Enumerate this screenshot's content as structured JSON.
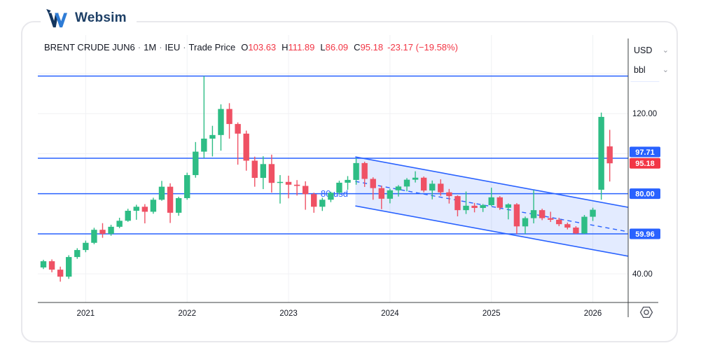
{
  "logo": {
    "text": "Websim"
  },
  "header": {
    "symbol": "BRENT CRUDE JUN6",
    "sep": "·",
    "interval": "1M",
    "exchange": "IEU",
    "price_type": "Trade Price",
    "o_label": "O",
    "o": "103.63",
    "h_label": "H",
    "h": "111.89",
    "l_label": "L",
    "l": "86.09",
    "c_label": "C",
    "c": "95.18",
    "change": "-23.17 (−19.58%)"
  },
  "axis_right": {
    "unit_currency": "USD",
    "unit_measure": "bbl",
    "chevron": "⌄"
  },
  "colors": {
    "up": "#2ebd85",
    "down": "#ef5164",
    "blue": "#2962ff",
    "red_badge": "#f23645",
    "axis_text": "#131722",
    "axis_line": "#3c4043",
    "grid": "#f0f1f4"
  },
  "chart_data": {
    "type": "candlestick",
    "title": "BRENT CRUDE JUN6",
    "interval": "1M",
    "exchange": "IEU",
    "price_source": "Trade Price",
    "current_ohlc": {
      "open": 103.63,
      "high": 111.89,
      "low": 86.09,
      "close": 95.18,
      "change": -23.17,
      "change_pct": -19.58
    },
    "ylim": [
      26,
      159
    ],
    "grid_prices": [
      40,
      60,
      80,
      100,
      120,
      140
    ],
    "y_axis_labels": [
      {
        "price": 120,
        "label": "120.00"
      },
      {
        "price": 40,
        "label": "40.00"
      }
    ],
    "price_lines": [
      {
        "price": 138.73,
        "label": "138.73"
      },
      {
        "price": 97.71,
        "label": "97.71"
      },
      {
        "price": 80.0,
        "label": "80.00"
      },
      {
        "price": 59.96,
        "label": "59.96"
      }
    ],
    "last_price": {
      "price": 95.18,
      "label": "95.18",
      "direction": "down"
    },
    "annotations": [
      {
        "text": "80 usd",
        "price": 80,
        "x_index": 32.8
      }
    ],
    "channel": {
      "x1_index": 36.9,
      "x2_index": 69.2,
      "top_price_start": 98.4,
      "top_price_end": 73.2,
      "bottom_price_start": 73.9,
      "bottom_price_end": 48.8,
      "midline_dashed": true
    },
    "time_axis": [
      {
        "label": "2021",
        "index": 5
      },
      {
        "label": "2022",
        "index": 17
      },
      {
        "label": "2023",
        "index": 29
      },
      {
        "label": "2024",
        "index": 41
      },
      {
        "label": "2025",
        "index": 53
      },
      {
        "label": "2026",
        "index": 65
      }
    ],
    "candles": [
      [
        "2020-08",
        43.2,
        47.0,
        42.4,
        46.3
      ],
      [
        "2020-09",
        46.3,
        47.2,
        40.8,
        42.1
      ],
      [
        "2020-10",
        42.1,
        43.6,
        36.1,
        38.6
      ],
      [
        "2020-11",
        38.6,
        49.3,
        37.5,
        48.4
      ],
      [
        "2020-12",
        48.4,
        52.8,
        47.5,
        51.9
      ],
      [
        "2021-01",
        51.9,
        56.6,
        50.8,
        55.5
      ],
      [
        "2021-02",
        55.5,
        63.0,
        54.8,
        62.0
      ],
      [
        "2021-03",
        62.0,
        65.3,
        58.0,
        60.0
      ],
      [
        "2021-04",
        60.0,
        64.5,
        59.0,
        63.5
      ],
      [
        "2021-05",
        63.5,
        68.0,
        62.8,
        66.5
      ],
      [
        "2021-06",
        66.5,
        72.5,
        66.0,
        71.5
      ],
      [
        "2021-07",
        71.5,
        74.5,
        67.0,
        73.5
      ],
      [
        "2021-08",
        73.5,
        74.8,
        65.2,
        71.0
      ],
      [
        "2021-09",
        71.0,
        78.0,
        70.0,
        77.0
      ],
      [
        "2021-10",
        77.0,
        86.4,
        76.5,
        83.5
      ],
      [
        "2021-11",
        83.5,
        85.2,
        65.4,
        70.5
      ],
      [
        "2021-12",
        70.5,
        78.5,
        69.0,
        77.8
      ],
      [
        "2022-01",
        77.8,
        90.5,
        77.0,
        89.3
      ],
      [
        "2022-02",
        89.3,
        105.8,
        88.0,
        101.0
      ],
      [
        "2022-03",
        101.0,
        138.7,
        97.8,
        107.5
      ],
      [
        "2022-04",
        107.5,
        113.9,
        98.6,
        109.3
      ],
      [
        "2022-05",
        109.3,
        124.6,
        101.5,
        122.3
      ],
      [
        "2022-06",
        122.3,
        125.2,
        107.5,
        114.8
      ],
      [
        "2022-07",
        114.8,
        115.6,
        94.5,
        110.0
      ],
      [
        "2022-08",
        110.0,
        111.5,
        91.5,
        96.5
      ],
      [
        "2022-09",
        96.5,
        98.5,
        83.5,
        87.9
      ],
      [
        "2022-10",
        87.9,
        98.7,
        82.3,
        94.8
      ],
      [
        "2022-11",
        94.8,
        99.5,
        80.6,
        85.4
      ],
      [
        "2022-12",
        85.4,
        89.3,
        75.1,
        85.9
      ],
      [
        "2023-01",
        85.9,
        89.0,
        77.7,
        84.5
      ],
      [
        "2023-02",
        84.5,
        86.8,
        79.1,
        83.9
      ],
      [
        "2023-03",
        83.9,
        86.2,
        72.0,
        79.8
      ],
      [
        "2023-04",
        79.8,
        80.5,
        70.5,
        73.5
      ],
      [
        "2023-05",
        73.5,
        78.0,
        71.4,
        77.0
      ],
      [
        "2023-06",
        77.0,
        81.0,
        75.8,
        80.5
      ],
      [
        "2023-07",
        80.5,
        86.5,
        79.5,
        85.5
      ],
      [
        "2023-08",
        85.5,
        88.8,
        82.0,
        86.9
      ],
      [
        "2023-09",
        86.9,
        97.71,
        84.5,
        95.3
      ],
      [
        "2023-10",
        95.3,
        96.0,
        83.4,
        87.4
      ],
      [
        "2023-11",
        87.4,
        88.2,
        77.0,
        82.8
      ],
      [
        "2023-12",
        82.8,
        84.0,
        72.3,
        77.5
      ],
      [
        "2024-01",
        77.5,
        82.5,
        75.2,
        81.7
      ],
      [
        "2024-02",
        81.7,
        84.3,
        78.6,
        83.6
      ],
      [
        "2024-03",
        83.6,
        87.8,
        81.2,
        87.0
      ],
      [
        "2024-04",
        87.0,
        91.2,
        85.6,
        88.0
      ],
      [
        "2024-05",
        88.0,
        88.6,
        80.7,
        81.6
      ],
      [
        "2024-06",
        81.6,
        86.6,
        77.2,
        85.0
      ],
      [
        "2024-07",
        85.0,
        87.2,
        79.0,
        80.7
      ],
      [
        "2024-08",
        80.7,
        82.4,
        75.1,
        78.8
      ],
      [
        "2024-09",
        78.8,
        79.2,
        68.7,
        71.8
      ],
      [
        "2024-10",
        71.8,
        81.1,
        69.9,
        74.0
      ],
      [
        "2024-11",
        74.0,
        75.4,
        70.7,
        72.9
      ],
      [
        "2024-12",
        72.9,
        74.9,
        70.9,
        74.3
      ],
      [
        "2025-01",
        74.3,
        83.0,
        73.8,
        78.2
      ],
      [
        "2025-02",
        78.2,
        78.8,
        71.9,
        73.0
      ],
      [
        "2025-03",
        73.0,
        75.2,
        67.2,
        74.7
      ],
      [
        "2025-04",
        74.7,
        75.3,
        59.96,
        63.7
      ],
      [
        "2025-05",
        63.7,
        68.6,
        60.0,
        67.8
      ],
      [
        "2025-06",
        67.8,
        81.8,
        65.2,
        71.8
      ],
      [
        "2025-07",
        71.8,
        72.5,
        66.8,
        67.8
      ],
      [
        "2025-08",
        67.8,
        71.0,
        65.9,
        67.0
      ],
      [
        "2025-09",
        67.0,
        68.0,
        63.8,
        64.8
      ],
      [
        "2025-10",
        64.8,
        65.6,
        62.2,
        63.1
      ],
      [
        "2025-11",
        63.1,
        63.8,
        59.9,
        60.2
      ],
      [
        "2025-12",
        60.2,
        69.4,
        59.9,
        68.5
      ],
      [
        "2026-01",
        68.5,
        73.0,
        66.4,
        72.0
      ],
      [
        "2026-02",
        82.0,
        120.5,
        77.0,
        118.35
      ],
      [
        "2026-03",
        103.63,
        111.89,
        86.09,
        95.18
      ]
    ]
  }
}
